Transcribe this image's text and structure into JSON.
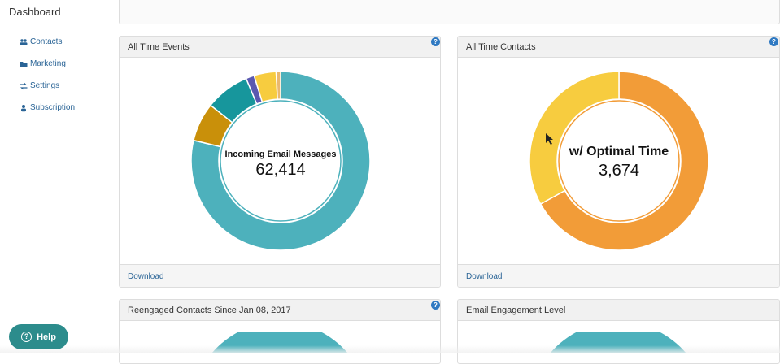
{
  "sidebar": {
    "brand": "Dashboard",
    "items": [
      {
        "label": "Contacts",
        "icon": "users-icon"
      },
      {
        "label": "Marketing",
        "icon": "folder-icon"
      },
      {
        "label": "Settings",
        "icon": "exchange-icon"
      },
      {
        "label": "Subscription",
        "icon": "user-icon"
      }
    ]
  },
  "panels": {
    "events": {
      "title": "All Time Events",
      "download": "Download",
      "center_title": "Incoming Email Messages",
      "center_value": "62,414"
    },
    "contacts": {
      "title": "All Time Contacts",
      "download": "Download",
      "center_title": "w/ Optimal Time",
      "center_value": "3,674"
    },
    "reengaged": {
      "title": "Reengaged Contacts Since Jan 08, 2017"
    },
    "engagement": {
      "title": "Email Engagement Level"
    }
  },
  "help_button": {
    "label": "Help"
  },
  "colors": {
    "teal": "#4db1bc",
    "gold": "#c9900a",
    "dark_teal": "#17969c",
    "indigo": "#5a58b0",
    "yellow": "#f7cc3f",
    "orange": "#f29c38",
    "peach": "#eab86f"
  },
  "chart_data": [
    {
      "type": "pie",
      "title": "All Time Events",
      "slices": [
        {
          "label": "Incoming Email Messages",
          "value": 62414,
          "color": "#4db1bc"
        },
        {
          "label": "",
          "value": 0.07,
          "color": "#c9900a",
          "fraction": true
        },
        {
          "label": "",
          "value": 0.08,
          "color": "#17969c",
          "fraction": true
        },
        {
          "label": "",
          "value": 0.015,
          "color": "#5a58b0",
          "fraction": true
        },
        {
          "label": "",
          "value": 0.04,
          "color": "#f7cc3f",
          "fraction": true
        },
        {
          "label": "",
          "value": 0.008,
          "color": "#eab86f",
          "fraction": true
        }
      ]
    },
    {
      "type": "pie",
      "title": "All Time Contacts",
      "slices": [
        {
          "label": "w/ Optimal Time",
          "value": 3674,
          "color": "#f29c38"
        },
        {
          "label": "",
          "value": 0.33,
          "color": "#f7cc3f",
          "fraction": true
        }
      ]
    }
  ]
}
